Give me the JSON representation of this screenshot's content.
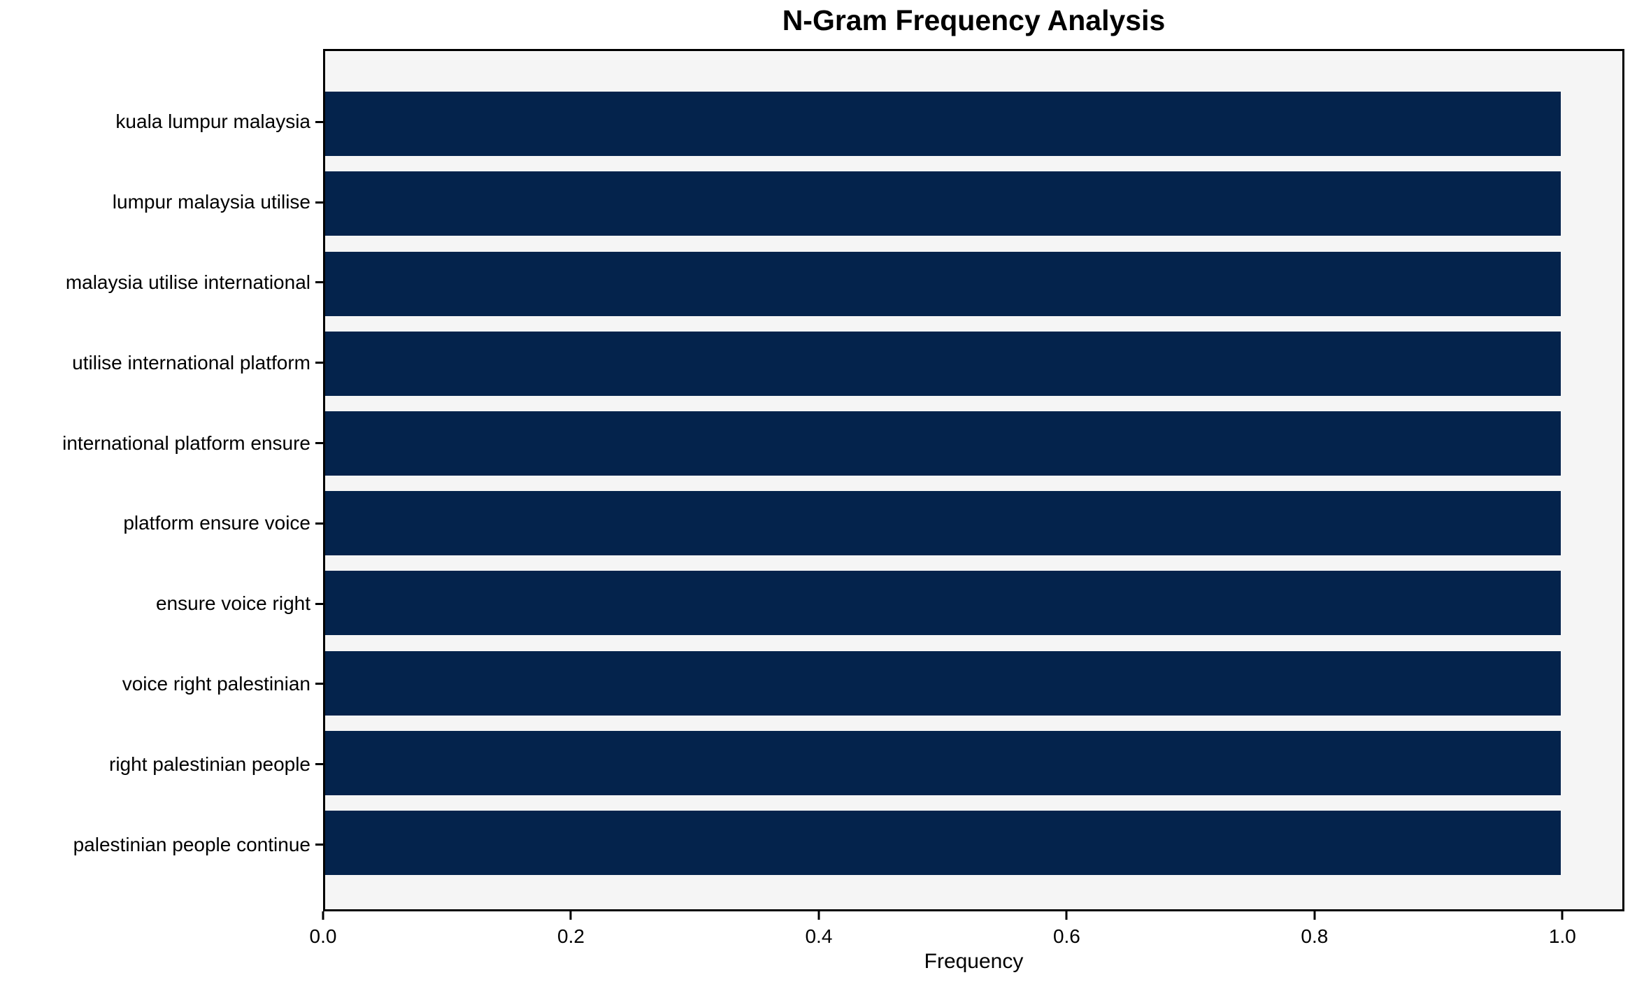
{
  "chart_data": {
    "type": "bar",
    "orientation": "horizontal",
    "title": "N-Gram Frequency Analysis",
    "xlabel": "Frequency",
    "ylabel": "",
    "categories": [
      "kuala lumpur malaysia",
      "lumpur malaysia utilise",
      "malaysia utilise international",
      "utilise international platform",
      "international platform ensure",
      "platform ensure voice",
      "ensure voice right",
      "voice right palestinian",
      "right palestinian people",
      "palestinian people continue"
    ],
    "values": [
      1.0,
      1.0,
      1.0,
      1.0,
      1.0,
      1.0,
      1.0,
      1.0,
      1.0,
      1.0
    ],
    "xlim": [
      0,
      1.05
    ],
    "xticks": [
      0.0,
      0.2,
      0.4,
      0.6,
      0.8,
      1.0
    ],
    "grid": false,
    "legend": false,
    "colors": {
      "bar": "#04234c",
      "plot_background": "#f5f5f5",
      "figure_background": "#ffffff",
      "axis": "#000000",
      "text": "#000000"
    }
  }
}
